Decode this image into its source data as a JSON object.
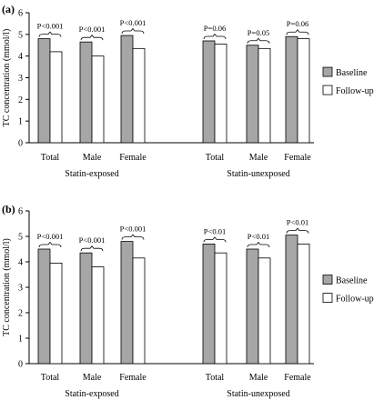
{
  "chart_data": [
    {
      "panel": "(a)",
      "type": "bar",
      "ylabel": "TC concentration (mmol/l)",
      "ylim": [
        0,
        6
      ],
      "yticks": [
        0,
        1,
        2,
        3,
        4,
        5,
        6
      ],
      "categories": [
        "Total",
        "Male",
        "Female",
        "Total",
        "Male",
        "Female"
      ],
      "groups": [
        "Statin-exposed",
        "Statin-unexposed"
      ],
      "series": [
        {
          "name": "Baseline",
          "color": "#a6a6a6",
          "values": [
            4.8,
            4.65,
            4.95,
            4.7,
            4.5,
            4.9
          ]
        },
        {
          "name": "Follow-up",
          "color": "#ffffff",
          "values": [
            4.2,
            4.0,
            4.35,
            4.55,
            4.35,
            4.8
          ]
        }
      ],
      "p_values": [
        "P<0.001",
        "P<0.001",
        "P<0.001",
        "P=0.06",
        "P=0.05",
        "P=0.06"
      ],
      "legend_position": "right"
    },
    {
      "panel": "(b)",
      "type": "bar",
      "ylabel": "TC concentration (mmol/l)",
      "ylim": [
        0,
        6
      ],
      "yticks": [
        0,
        1,
        2,
        3,
        4,
        5,
        6
      ],
      "categories": [
        "Total",
        "Male",
        "Female",
        "Total",
        "Male",
        "Female"
      ],
      "groups": [
        "Statin-exposed",
        "Statin-unexposed"
      ],
      "series": [
        {
          "name": "Baseline",
          "color": "#a6a6a6",
          "values": [
            4.5,
            4.35,
            4.8,
            4.7,
            4.5,
            5.05
          ]
        },
        {
          "name": "Follow-up",
          "color": "#ffffff",
          "values": [
            3.95,
            3.8,
            4.15,
            4.35,
            4.15,
            4.7
          ]
        }
      ],
      "p_values": [
        "P<0.001",
        "P<0.001",
        "P<0.001",
        "P<0.01",
        "P<0.01",
        "P<0.01"
      ],
      "legend_position": "right"
    }
  ]
}
